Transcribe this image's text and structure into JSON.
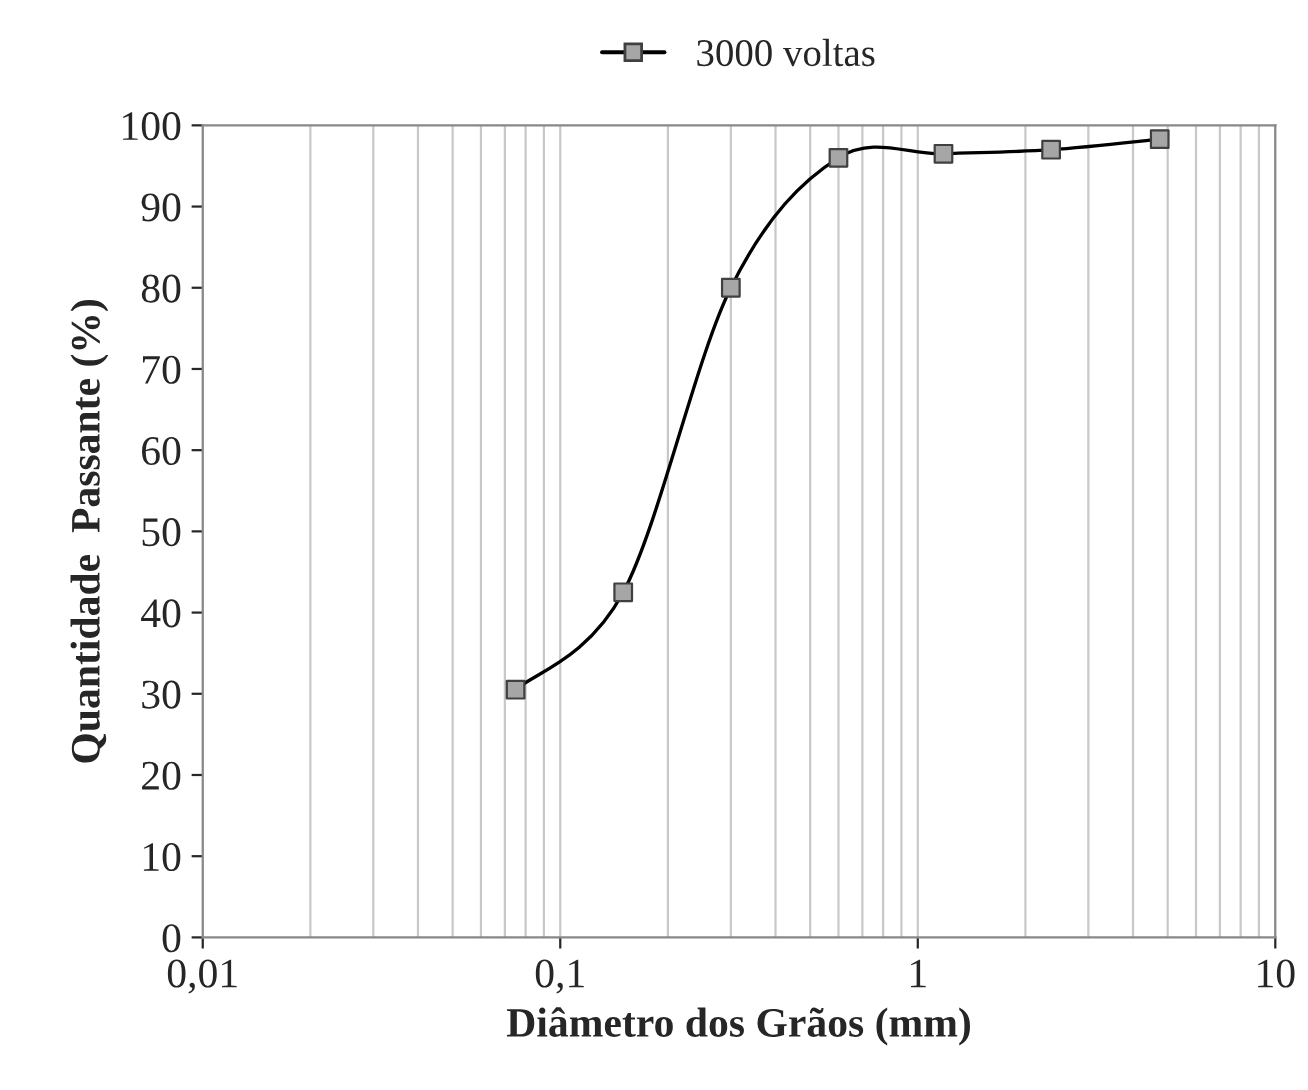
{
  "chart_data": {
    "type": "line",
    "xlabel": "Diâmetro dos Grãos (mm)",
    "ylabel": "Quantidade  Passante (%)",
    "x": [
      0.075,
      0.15,
      0.3,
      0.6,
      1.18,
      2.36,
      4.75
    ],
    "series": [
      {
        "name": "3000 voltas",
        "color": "#000000",
        "values": [
          30.5,
          42.5,
          80,
          96,
          96.5,
          97,
          98.3
        ]
      }
    ],
    "log": "x",
    "xlim": [
      0.01,
      10
    ],
    "ylim": [
      0,
      100
    ],
    "xticks": [
      {
        "value": 0.01,
        "label": "0,01"
      },
      {
        "value": 0.1,
        "label": "0,1"
      },
      1,
      10
    ],
    "yticks": [
      0,
      10,
      20,
      30,
      40,
      50,
      60,
      70,
      80,
      90,
      100
    ],
    "grid": "x",
    "legend": "top",
    "marker": "square",
    "line_style": "solid"
  }
}
